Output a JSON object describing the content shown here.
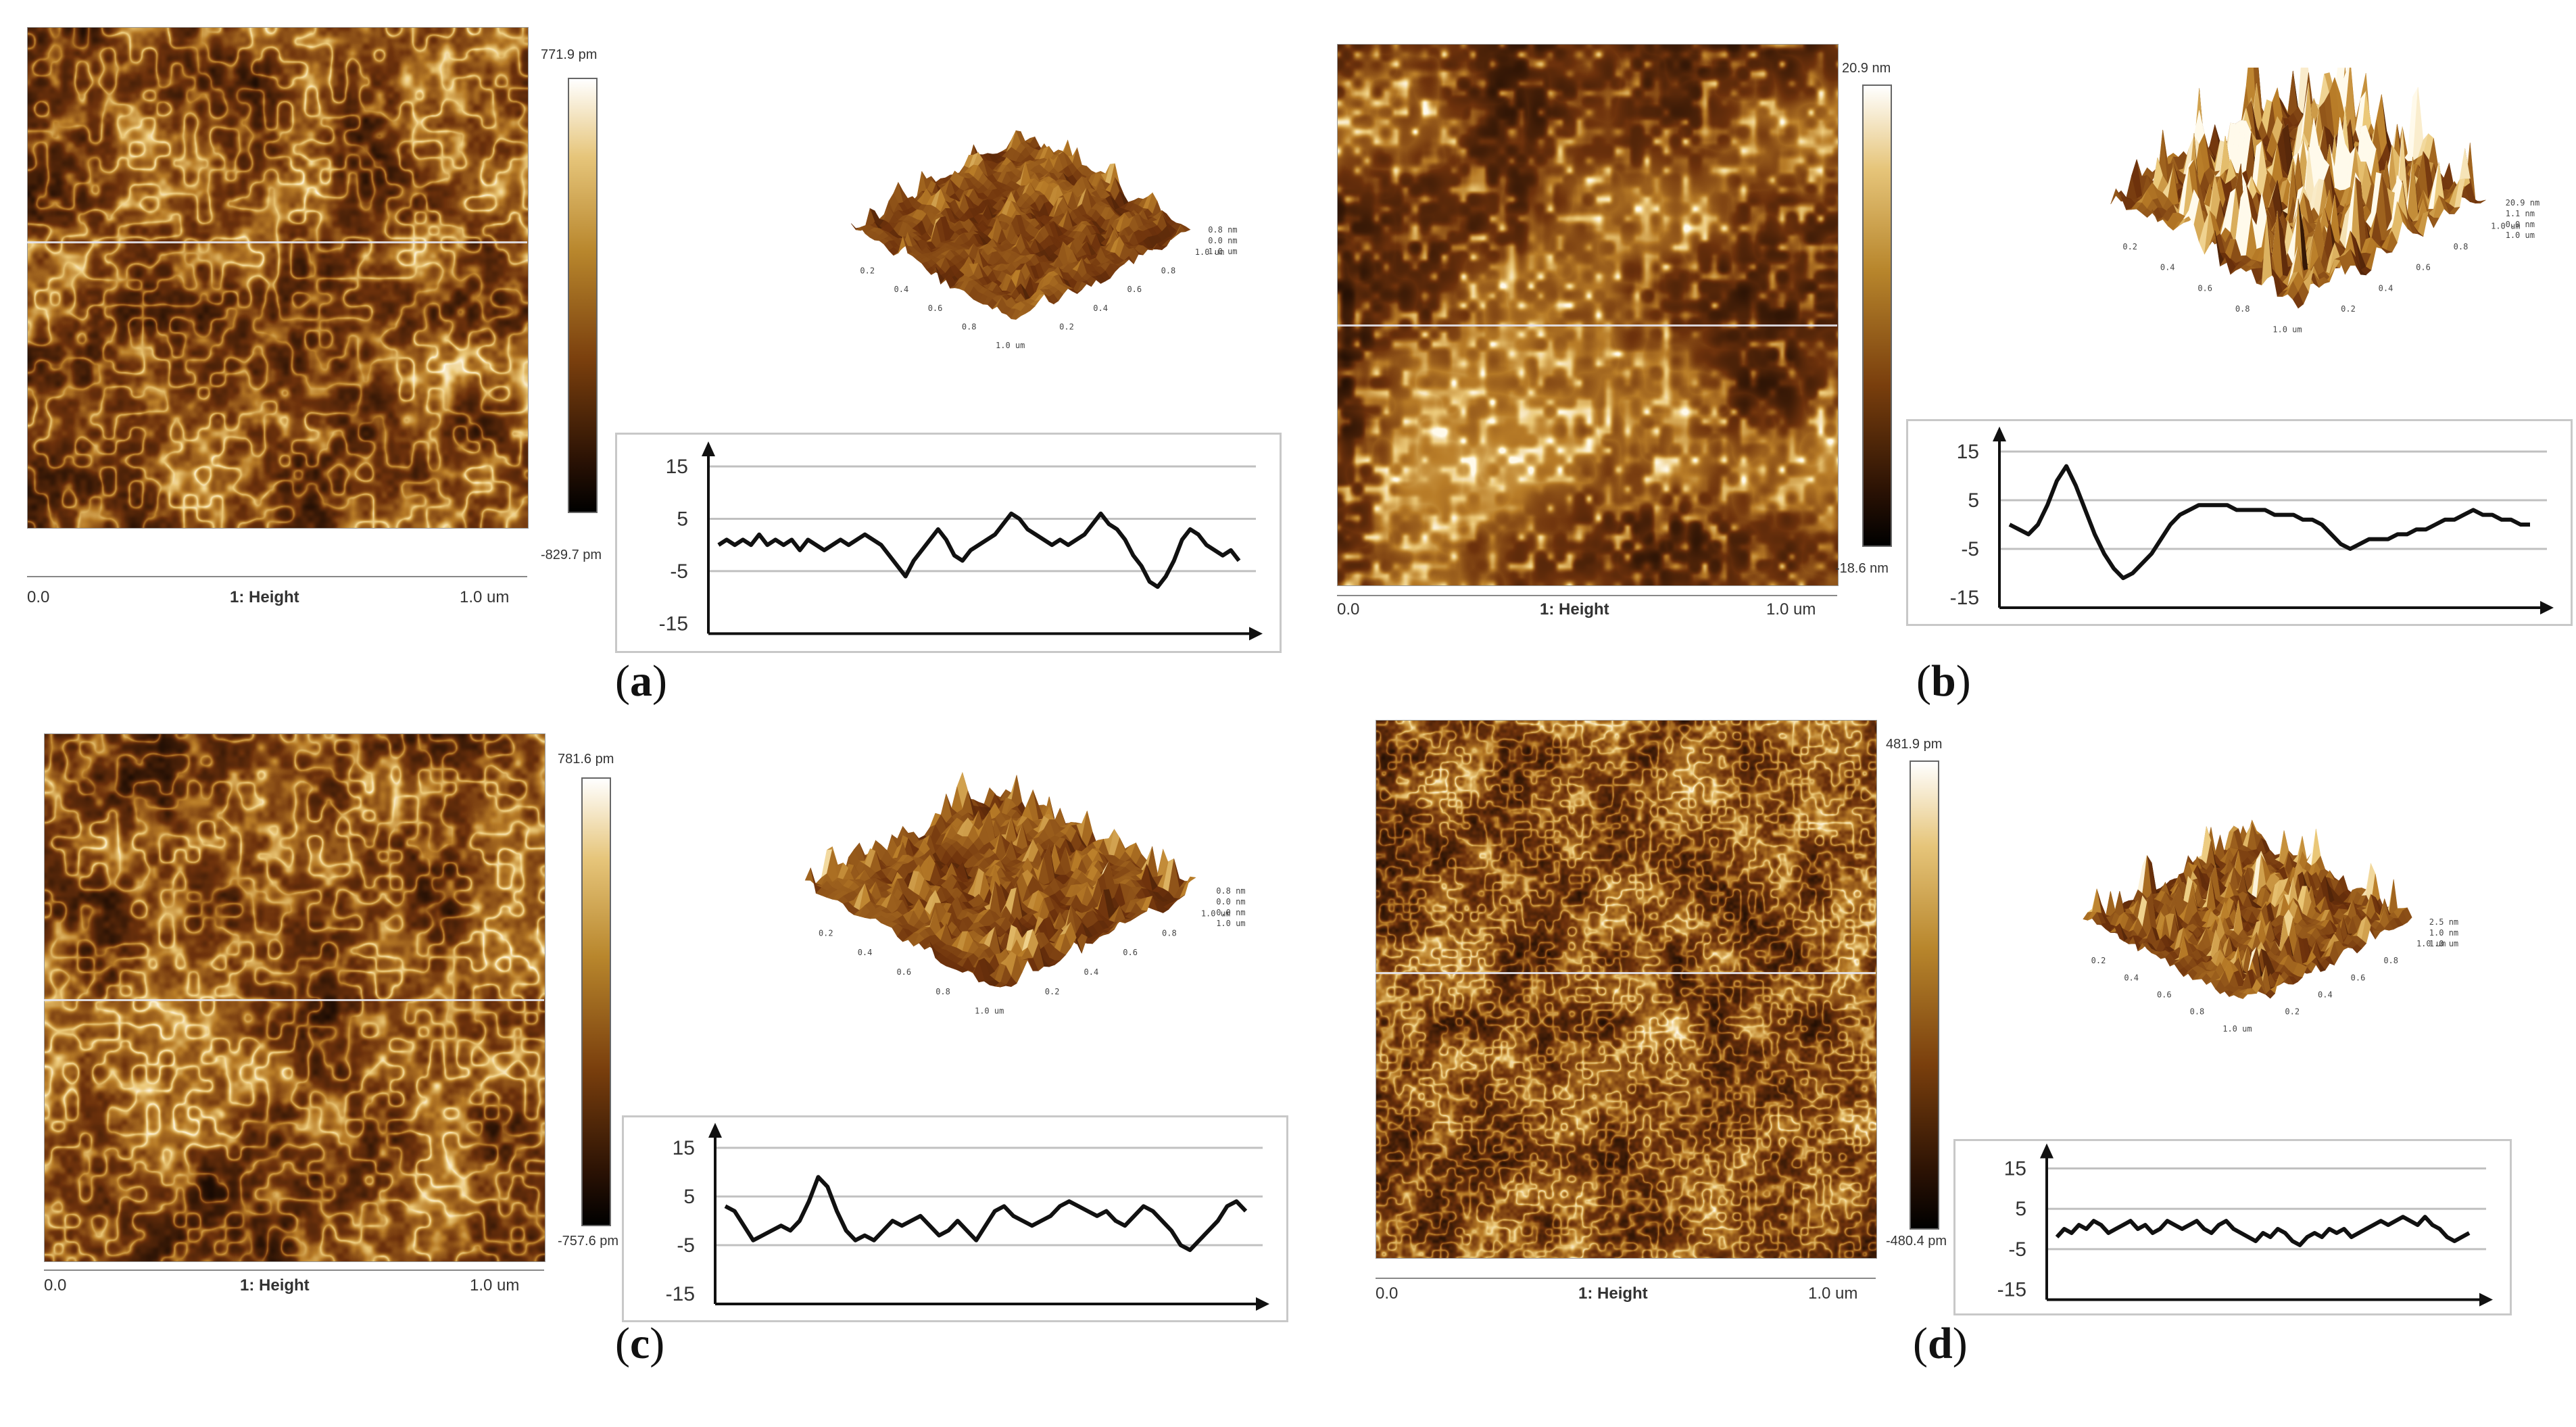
{
  "colors": {
    "afm_dark": "#2b1204",
    "afm_mid": "#8a4a12",
    "afm_light": "#e8c878",
    "afm_white": "#fff4dc",
    "profile_line": "#111111",
    "grid": "#c0c0c0"
  },
  "panels": [
    {
      "id": "a",
      "label_letter": "a",
      "map_x_start": "0.0",
      "map_x_end": "1.0 um",
      "map_title": "1: Height",
      "colorbar_max": "771.9 pm",
      "colorbar_min": "-829.7 pm",
      "axis3d_z": [
        "0.8 nm",
        "0.0 nm",
        "1.0 um"
      ],
      "axis3d_x": [
        "0.2",
        "0.4",
        "0.6",
        "0.8",
        "1.0 um"
      ],
      "axis3d_y": [
        "0.2",
        "0.4",
        "0.6",
        "0.8",
        "1.0 um"
      ],
      "profile_ticks": [
        "15",
        "5",
        "-5",
        "-15"
      ],
      "profile_data": [
        0,
        1,
        0,
        1,
        0,
        2,
        0,
        1,
        0,
        1,
        -1,
        1,
        0,
        -1,
        0,
        1,
        0,
        1,
        2,
        1,
        0,
        -2,
        -4,
        -6,
        -3,
        -1,
        1,
        3,
        1,
        -2,
        -3,
        -1,
        0,
        1,
        2,
        4,
        6,
        5,
        3,
        2,
        1,
        0,
        1,
        0,
        1,
        2,
        4,
        6,
        4,
        3,
        1,
        -2,
        -4,
        -7,
        -8,
        -6,
        -3,
        1,
        3,
        2,
        0,
        -1,
        -2,
        -1,
        -3
      ]
    },
    {
      "id": "b",
      "label_letter": "b",
      "map_x_start": "0.0",
      "map_x_end": "1.0 um",
      "map_title": "1: Height",
      "colorbar_max": "20.9 nm",
      "colorbar_min": "-18.6 nm",
      "axis3d_z": [
        "20.9 nm",
        "1.1 nm",
        "0.0 nm",
        "1.0 um"
      ],
      "axis3d_x": [
        "0.2",
        "0.4",
        "0.6",
        "0.8",
        "1.0 um"
      ],
      "axis3d_y": [
        "0.2",
        "0.4",
        "0.6",
        "0.8",
        "1.0 um"
      ],
      "profile_ticks": [
        "15",
        "5",
        "-5",
        "-15"
      ],
      "profile_data": [
        0,
        -1,
        -2,
        0,
        4,
        9,
        12,
        8,
        3,
        -2,
        -6,
        -9,
        -11,
        -10,
        -8,
        -6,
        -3,
        0,
        2,
        3,
        4,
        4,
        4,
        4,
        3,
        3,
        3,
        3,
        2,
        2,
        2,
        1,
        1,
        0,
        -2,
        -4,
        -5,
        -4,
        -3,
        -3,
        -3,
        -2,
        -2,
        -1,
        -1,
        0,
        1,
        1,
        2,
        3,
        2,
        2,
        1,
        1,
        0,
        0
      ]
    },
    {
      "id": "c",
      "label_letter": "c",
      "map_x_start": "0.0",
      "map_x_end": "1.0 um",
      "map_title": "1: Height",
      "colorbar_max": "781.6 pm",
      "colorbar_min": "-757.6 pm",
      "axis3d_z": [
        "0.8 nm",
        "0.0 nm",
        "0.0 nm",
        "1.0 um"
      ],
      "axis3d_x": [
        "0.2",
        "0.4",
        "0.6",
        "0.8",
        "1.0 um"
      ],
      "axis3d_y": [
        "0.2",
        "0.4",
        "0.6",
        "0.8",
        "1.0 um"
      ],
      "profile_ticks": [
        "15",
        "5",
        "-5",
        "-15"
      ],
      "profile_data": [
        3,
        2,
        -1,
        -4,
        -3,
        -2,
        -1,
        -2,
        0,
        4,
        9,
        7,
        2,
        -2,
        -4,
        -3,
        -4,
        -2,
        0,
        -1,
        0,
        1,
        -1,
        -3,
        -2,
        0,
        -2,
        -4,
        -1,
        2,
        3,
        1,
        0,
        -1,
        0,
        1,
        3,
        4,
        3,
        2,
        1,
        2,
        0,
        -1,
        1,
        3,
        2,
        0,
        -2,
        -5,
        -6,
        -4,
        -2,
        0,
        3,
        4,
        2
      ]
    },
    {
      "id": "d",
      "label_letter": "d",
      "map_x_start": "0.0",
      "map_x_end": "1.0 um",
      "map_title": "1: Height",
      "colorbar_max": "481.9 pm",
      "colorbar_min": "-480.4 pm",
      "axis3d_z": [
        "2.5 nm",
        "1.0 nm",
        "1.0 um"
      ],
      "axis3d_x": [
        "0.2",
        "0.4",
        "0.6",
        "0.8",
        "1.0 um"
      ],
      "axis3d_y": [
        "0.2",
        "0.4",
        "0.6",
        "0.8",
        "1.0 um"
      ],
      "profile_ticks": [
        "15",
        "5",
        "-5",
        "-15"
      ],
      "profile_data": [
        -2,
        0,
        -1,
        1,
        0,
        2,
        1,
        -1,
        0,
        1,
        2,
        0,
        1,
        -1,
        0,
        2,
        1,
        0,
        1,
        2,
        0,
        -1,
        1,
        2,
        0,
        -1,
        -2,
        -3,
        -1,
        -2,
        0,
        -1,
        -3,
        -4,
        -2,
        -1,
        -2,
        0,
        -1,
        0,
        -2,
        -1,
        0,
        1,
        2,
        1,
        2,
        3,
        2,
        1,
        3,
        1,
        0,
        -2,
        -3,
        -2,
        -1
      ]
    }
  ]
}
